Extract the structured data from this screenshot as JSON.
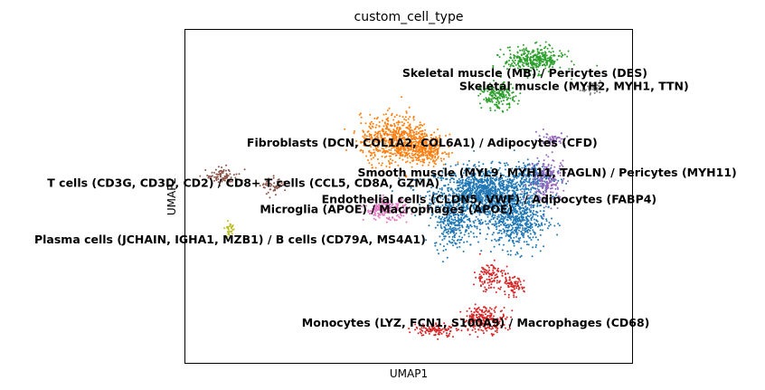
{
  "chart_data": {
    "type": "scatter",
    "title": "custom_cell_type",
    "xlabel": "UMAP1",
    "ylabel": "UMAP2",
    "xlim": [
      0,
      100
    ],
    "ylim": [
      0,
      100
    ],
    "grid": false,
    "legend": "on data",
    "clusters": [
      {
        "name": "Endothelial cells (CLDN5, VWF) / Adipocytes (FABP4)",
        "color": "#1f77b4",
        "cx": 68,
        "cy": 49,
        "n": 2200,
        "lobes": [
          [
            67,
            51,
            10,
            7,
            0.55
          ],
          [
            74,
            43,
            6,
            8,
            0.25
          ],
          [
            60,
            42,
            4,
            7,
            0.12
          ],
          [
            78,
            56,
            4,
            4,
            0.08
          ]
        ]
      },
      {
        "name": "Fibroblasts (DCN, COL1A2, COL6A1) / Adipocytes (CFD)",
        "color": "#ff7f0e",
        "cx": 47,
        "cy": 65,
        "n": 900,
        "lobes": [
          [
            47,
            67,
            7,
            6.5,
            0.7
          ],
          [
            54,
            64,
            4,
            4,
            0.3
          ]
        ]
      },
      {
        "name": "Skeletal muscle (MB) / Pericytes (DES)",
        "color": "#2ca02c",
        "cx": 75,
        "cy": 88,
        "n": 520,
        "lobes": [
          [
            78,
            91,
            6,
            3.5,
            0.65
          ],
          [
            70,
            80,
            3.5,
            3.5,
            0.35
          ]
        ]
      },
      {
        "name": "Monocytes (LYZ, FCN1, S100A9) / Macrophages (CD68)",
        "color": "#d62728",
        "cx": 65,
        "cy": 16,
        "n": 560,
        "lobes": [
          [
            67,
            13,
            4.5,
            3.5,
            0.45
          ],
          [
            56,
            10,
            4.5,
            1.8,
            0.2
          ],
          [
            68,
            26,
            3,
            4,
            0.2
          ],
          [
            73,
            23,
            2.5,
            2.5,
            0.15
          ]
        ]
      },
      {
        "name": "Smooth muscle (MYL9, MYH11, TAGLN) / Pericytes (MYH11)",
        "color": "#9467bd",
        "cx": 81,
        "cy": 55,
        "n": 280,
        "lobes": [
          [
            81,
            55,
            4,
            6,
            0.75
          ],
          [
            82,
            67,
            3,
            2,
            0.25
          ]
        ]
      },
      {
        "name": "T cells (CD3G, CD3D, CD2) / CD8+ T cells (CCL5, CD8A, GZMA)",
        "color": "#8c564b",
        "cx": 13,
        "cy": 54,
        "n": 140,
        "lobes": [
          [
            8.5,
            56,
            3.5,
            2.2,
            0.65
          ],
          [
            20,
            53,
            2.5,
            2.2,
            0.35
          ]
        ]
      },
      {
        "name": "Microglia (APOE) / Macrophages (APOE)",
        "color": "#e377c2",
        "cx": 45,
        "cy": 46,
        "n": 190,
        "lobes": [
          [
            45,
            46,
            4.5,
            2.8,
            1.0
          ]
        ]
      },
      {
        "name": "Skeletal muscle (MYH2, MYH1, TTN)",
        "color": "#7f7f7f",
        "cx": 91,
        "cy": 82,
        "n": 35,
        "lobes": [
          [
            91,
            82,
            2.8,
            1.5,
            1.0
          ]
        ]
      },
      {
        "name": "Plasma cells (JCHAIN, IGHA1, MZB1) / B cells (CD79A, MS4A1)",
        "color": "#bcbd22",
        "cx": 10,
        "cy": 40,
        "n": 30,
        "lobes": [
          [
            10,
            40,
            1.0,
            2.8,
            1.0
          ]
        ]
      }
    ],
    "labels": [
      {
        "text": "Skeletal muscle (MB) / Pericytes (DES)",
        "x": 76,
        "y": 87
      },
      {
        "text": "Skeletal muscle (MYH2, MYH1, TTN)",
        "x": 87,
        "y": 83
      },
      {
        "text": "Fibroblasts (DCN, COL1A2, COL6A1) / Adipocytes (CFD)",
        "x": 53,
        "y": 66
      },
      {
        "text": "Smooth muscle (MYL9, MYH11, TAGLN) / Pericytes (MYH11)",
        "x": 81,
        "y": 57
      },
      {
        "text": "T cells (CD3G, CD3D, CD2) / CD8+ T cells (CCL5, CD8A, GZMA)",
        "x": 13,
        "y": 54
      },
      {
        "text": "Endothelial cells (CLDN5, VWF) / Adipocytes (FABP4)",
        "x": 68,
        "y": 49
      },
      {
        "text": "Microglia (APOE) / Macrophages (APOE)",
        "x": 45,
        "y": 46
      },
      {
        "text": "Plasma cells (JCHAIN, IGHA1, MZB1) / B cells (CD79A, MS4A1)",
        "x": 10,
        "y": 37
      },
      {
        "text": "Monocytes (LYZ, FCN1, S100A9) / Macrophages (CD68)",
        "x": 65,
        "y": 12
      }
    ]
  }
}
